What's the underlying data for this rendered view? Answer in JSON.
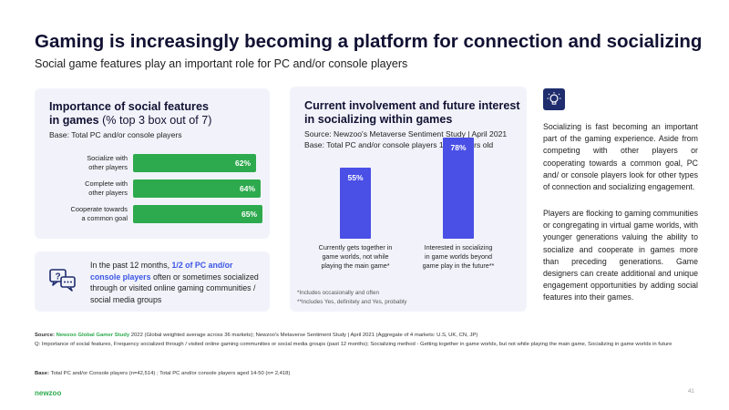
{
  "header": {
    "title": "Gaming is increasingly becoming a platform for connection and socializing",
    "subtitle": "Social game features play an important role for PC and/or console players"
  },
  "left_panel": {
    "title_bold_1": "Importance of social features",
    "title_bold_2": "in games",
    "title_light": "(% top 3 box out of 7)",
    "base": "Base: Total PC and/or console players"
  },
  "callout": {
    "text_before": "In the past 12 months,",
    "text_highlight": "1/2 of PC and/or console players",
    "text_after": "often or sometimes socialized through or visited online gaming communities / social media groups",
    "icon": "chat-bubbles-question-icon"
  },
  "mid_panel": {
    "title_line1": "Current involvement and future interest",
    "title_line2": "in socializing within games",
    "source": "Source: Newzoo's Metaverse Sentiment Study  | April 2021",
    "base": "Base: Total PC and/or console players 14-50 years old",
    "note1": "*Includes occasionally and often",
    "note2": "**Includes Yes, definitely and Yes, probably"
  },
  "chart_data": [
    {
      "type": "bar",
      "orientation": "horizontal",
      "categories": [
        [
          "Socialize with",
          "other players"
        ],
        [
          "Complete with",
          "other players"
        ],
        [
          "Cooperate towards",
          "a common goal"
        ]
      ],
      "values": [
        62,
        64,
        65
      ],
      "value_labels": [
        "62%",
        "64%",
        "65%"
      ],
      "xlim": [
        0,
        100
      ],
      "color": "#2eaa4e"
    },
    {
      "type": "bar",
      "orientation": "vertical",
      "categories": [
        [
          "Currently gets together in",
          "game worlds, not while",
          "playing the main game*"
        ],
        [
          "Interested in socializing",
          "in game worlds beyond",
          "game play in the future**"
        ]
      ],
      "values": [
        55,
        78
      ],
      "value_labels": [
        "55%",
        "78%"
      ],
      "ylim": [
        0,
        100
      ],
      "color": "#4a4fe6"
    }
  ],
  "sidebar": {
    "icon": "lightbulb-icon",
    "para1": "Socializing is fast becoming an important part of the gaming experience. Aside from competing with other players or cooperating towards a common goal, PC and/ or console players look for other types of connection and socializing engagement.",
    "para2": "Players are flocking to gaming communities or congregating in virtual game worlds, with younger generations valuing the ability to socialize and cooperate in games more than preceding generations. Game designers can create additional and unique engagement opportunities by adding social features into their games."
  },
  "footer": {
    "source_label": "Source:",
    "source_link": "Newzoo Global Gamer Study",
    "source_rest": "2022 (Global weighted average across 36 markets); Newzoo's Metaverse Sentiment Study | April 2021 (Aggregate of 4 markets: U.S, UK, CN, JP)",
    "question": "Q: Importance of social features, Frequency socialized through / visited online gaming communities or social media groups (past 12 months); Socializing method - Getting together in game worlds, but not while playing the main game, Socializing in game worlds in future",
    "base_label": "Base:",
    "base_text": "Total PC and/or Console players (n=42,514) ; Total PC and/or console players aged 14-50 (n= 2,418)",
    "logo": "newzoo",
    "page": "41"
  }
}
